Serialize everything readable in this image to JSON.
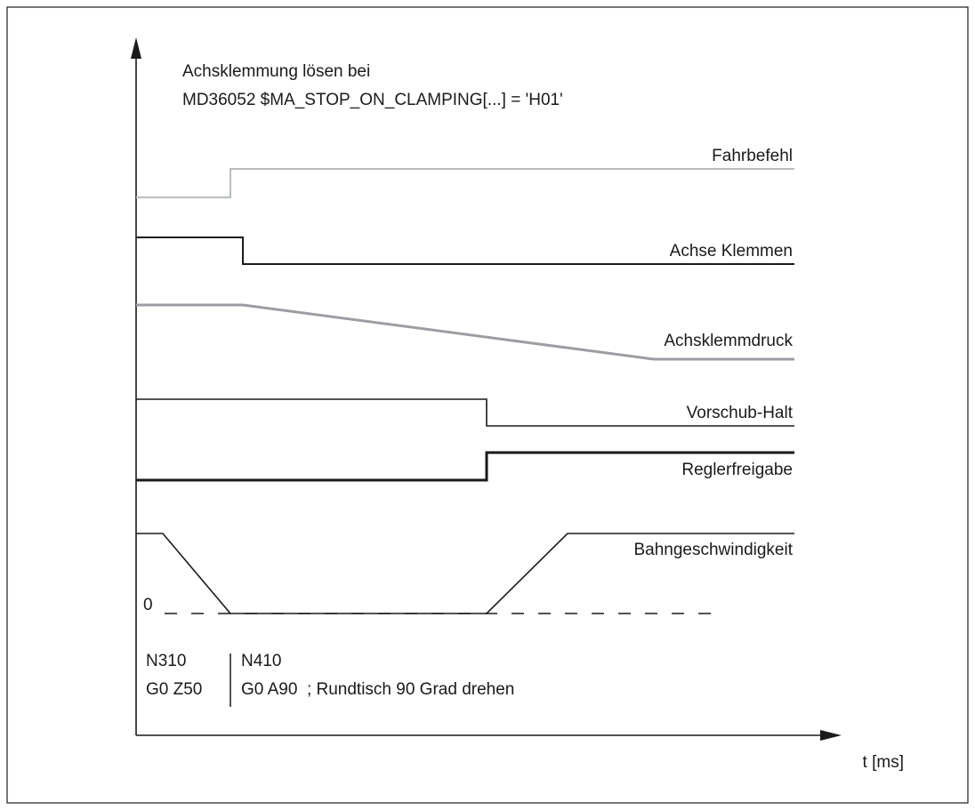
{
  "title": {
    "line1": "Achsklemmung lösen bei",
    "line2": "MD36052 $MA_STOP_ON_CLAMPING[...] = 'H01'"
  },
  "signals": [
    {
      "label": "Fahrbefehl",
      "color": "#b8bcbf"
    },
    {
      "label": "Achse Klemmen",
      "color": "#1a1a1a"
    },
    {
      "label": "Achsklemmdruck",
      "color": "#9a9ea2"
    },
    {
      "label": "Vorschub-Halt",
      "color": "#1a1a1a"
    },
    {
      "label": "Reglerfreigabe",
      "color": "#1a1a1a"
    },
    {
      "label": "Bahngeschwindigkeit",
      "color": "#1a1a1a"
    }
  ],
  "zero_label": "0",
  "blocks": {
    "left": {
      "line1": "N310",
      "line2": "G0 Z50"
    },
    "right": {
      "line1": "N410",
      "line2": "G0 A90  ; Rundtisch 90 Grad drehen"
    }
  },
  "x_axis_label": "t [ms]"
}
